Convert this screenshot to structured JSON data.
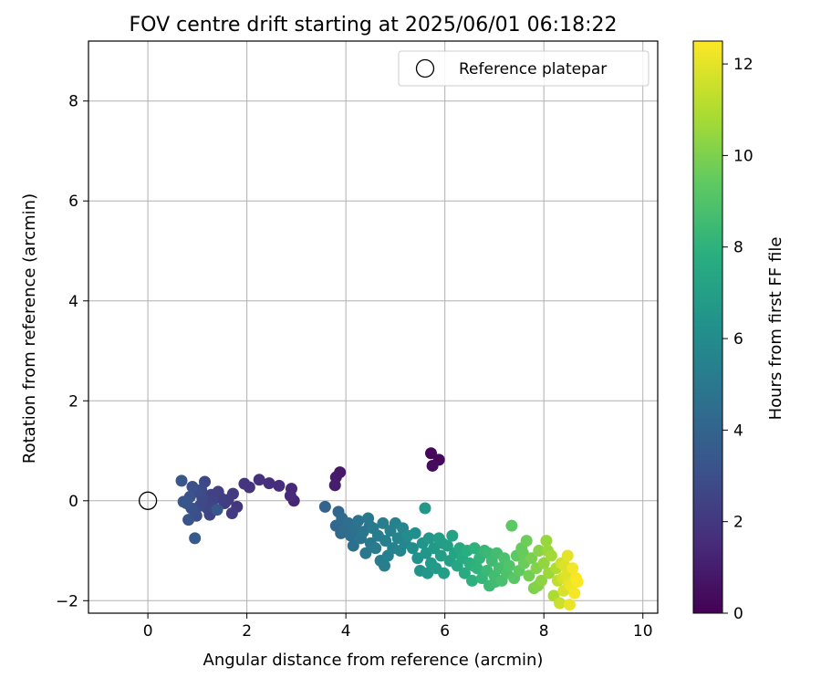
{
  "chart_data": {
    "type": "scatter",
    "title": "FOV centre drift starting at 2025/06/01 06:18:22",
    "xlabel": "Angular distance from reference (arcmin)",
    "ylabel": "Rotation from reference (arcmin)",
    "xlim": [
      -1.2,
      10.3
    ],
    "ylim": [
      -2.25,
      9.2
    ],
    "xticks": [
      0,
      2,
      4,
      6,
      8,
      10
    ],
    "yticks": [
      -2,
      0,
      2,
      4,
      6,
      8
    ],
    "grid": true,
    "legend": {
      "placement": "top-right",
      "entries": [
        "Reference platepar"
      ]
    },
    "reference_point": {
      "label": "Reference platepar",
      "x": 0,
      "y": 0,
      "marker": "open-circle"
    },
    "colorbar": {
      "label": "Hours from first FF file",
      "colormap": "viridis",
      "range": [
        0,
        12.5
      ],
      "ticks": [
        0,
        2,
        4,
        6,
        8,
        10,
        12
      ]
    },
    "points": [
      {
        "x": 5.72,
        "y": 0.95,
        "c": 0.2
      },
      {
        "x": 5.88,
        "y": 0.82,
        "c": 0.3
      },
      {
        "x": 5.75,
        "y": 0.7,
        "c": 0.4
      },
      {
        "x": 3.88,
        "y": 0.57,
        "c": 0.8
      },
      {
        "x": 3.8,
        "y": 0.47,
        "c": 0.9
      },
      {
        "x": 3.78,
        "y": 0.31,
        "c": 1.0
      },
      {
        "x": 2.95,
        "y": 0.0,
        "c": 1.3
      },
      {
        "x": 2.9,
        "y": 0.24,
        "c": 1.4
      },
      {
        "x": 2.88,
        "y": 0.1,
        "c": 1.45
      },
      {
        "x": 2.65,
        "y": 0.3,
        "c": 1.55
      },
      {
        "x": 2.45,
        "y": 0.35,
        "c": 1.65
      },
      {
        "x": 2.25,
        "y": 0.42,
        "c": 1.75
      },
      {
        "x": 2.05,
        "y": 0.27,
        "c": 1.85
      },
      {
        "x": 1.95,
        "y": 0.34,
        "c": 1.9
      },
      {
        "x": 1.8,
        "y": -0.12,
        "c": 2.0
      },
      {
        "x": 1.72,
        "y": 0.14,
        "c": 2.1
      },
      {
        "x": 1.7,
        "y": -0.25,
        "c": 2.15
      },
      {
        "x": 1.55,
        "y": -0.05,
        "c": 2.2
      },
      {
        "x": 1.48,
        "y": 0.05,
        "c": 2.3
      },
      {
        "x": 1.42,
        "y": 0.18,
        "c": 2.35
      },
      {
        "x": 1.35,
        "y": 0.1,
        "c": 2.4
      },
      {
        "x": 1.3,
        "y": -0.02,
        "c": 2.5
      },
      {
        "x": 1.25,
        "y": -0.28,
        "c": 2.55
      },
      {
        "x": 1.2,
        "y": -0.15,
        "c": 2.6
      },
      {
        "x": 1.15,
        "y": 0.38,
        "c": 2.7
      },
      {
        "x": 1.1,
        "y": 0.05,
        "c": 2.75
      },
      {
        "x": 1.05,
        "y": -0.1,
        "c": 2.8
      },
      {
        "x": 1.0,
        "y": 0.18,
        "c": 2.9
      },
      {
        "x": 0.98,
        "y": -0.3,
        "c": 2.95
      },
      {
        "x": 0.95,
        "y": -0.22,
        "c": 3.0
      },
      {
        "x": 0.9,
        "y": 0.28,
        "c": 3.05
      },
      {
        "x": 0.88,
        "y": -0.15,
        "c": 3.1
      },
      {
        "x": 0.85,
        "y": 0.08,
        "c": 3.15
      },
      {
        "x": 0.82,
        "y": -0.38,
        "c": 3.2
      },
      {
        "x": 0.78,
        "y": -0.05,
        "c": 3.25
      },
      {
        "x": 0.72,
        "y": -0.02,
        "c": 3.3
      },
      {
        "x": 0.68,
        "y": 0.4,
        "c": 3.35
      },
      {
        "x": 0.95,
        "y": -0.75,
        "c": 3.5
      },
      {
        "x": 1.4,
        "y": -0.18,
        "c": 3.4
      },
      {
        "x": 1.28,
        "y": 0.12,
        "c": 2.45
      },
      {
        "x": 1.62,
        "y": 0.02,
        "c": 2.25
      },
      {
        "x": 1.08,
        "y": 0.22,
        "c": 2.85
      },
      {
        "x": 3.58,
        "y": -0.12,
        "c": 4.0
      },
      {
        "x": 3.85,
        "y": -0.22,
        "c": 4.1
      },
      {
        "x": 3.8,
        "y": -0.5,
        "c": 4.2
      },
      {
        "x": 3.92,
        "y": -0.35,
        "c": 4.3
      },
      {
        "x": 3.95,
        "y": -0.6,
        "c": 4.4
      },
      {
        "x": 4.05,
        "y": -0.45,
        "c": 4.5
      },
      {
        "x": 4.1,
        "y": -0.7,
        "c": 4.55
      },
      {
        "x": 4.15,
        "y": -0.9,
        "c": 4.6
      },
      {
        "x": 4.2,
        "y": -0.55,
        "c": 4.7
      },
      {
        "x": 4.25,
        "y": -0.4,
        "c": 4.75
      },
      {
        "x": 4.3,
        "y": -0.75,
        "c": 4.8
      },
      {
        "x": 4.35,
        "y": -0.62,
        "c": 4.9
      },
      {
        "x": 4.4,
        "y": -1.05,
        "c": 4.95
      },
      {
        "x": 4.45,
        "y": -0.35,
        "c": 5.0
      },
      {
        "x": 4.5,
        "y": -0.85,
        "c": 5.05
      },
      {
        "x": 4.55,
        "y": -0.55,
        "c": 5.1
      },
      {
        "x": 4.6,
        "y": -0.95,
        "c": 5.15
      },
      {
        "x": 4.65,
        "y": -0.7,
        "c": 5.2
      },
      {
        "x": 4.7,
        "y": -1.2,
        "c": 5.25
      },
      {
        "x": 4.75,
        "y": -0.45,
        "c": 5.3
      },
      {
        "x": 4.8,
        "y": -0.8,
        "c": 5.35
      },
      {
        "x": 4.85,
        "y": -1.1,
        "c": 5.4
      },
      {
        "x": 4.9,
        "y": -0.6,
        "c": 5.45
      },
      {
        "x": 4.95,
        "y": -0.95,
        "c": 5.5
      },
      {
        "x": 5.0,
        "y": -0.45,
        "c": 5.55
      },
      {
        "x": 5.05,
        "y": -0.75,
        "c": 5.6
      },
      {
        "x": 5.1,
        "y": -1.0,
        "c": 5.65
      },
      {
        "x": 5.15,
        "y": -0.55,
        "c": 5.7
      },
      {
        "x": 5.2,
        "y": -0.85,
        "c": 5.75
      },
      {
        "x": 4.0,
        "y": -0.5,
        "c": 4.35
      },
      {
        "x": 4.48,
        "y": -0.5,
        "c": 4.85
      },
      {
        "x": 4.78,
        "y": -1.3,
        "c": 5.3
      },
      {
        "x": 3.9,
        "y": -0.65,
        "c": 4.25
      },
      {
        "x": 5.25,
        "y": -0.7,
        "c": 6.0
      },
      {
        "x": 5.35,
        "y": -0.95,
        "c": 6.1
      },
      {
        "x": 5.4,
        "y": -0.65,
        "c": 6.2
      },
      {
        "x": 5.45,
        "y": -1.15,
        "c": 6.3
      },
      {
        "x": 5.5,
        "y": -1.4,
        "c": 6.35
      },
      {
        "x": 5.55,
        "y": -0.85,
        "c": 6.4
      },
      {
        "x": 5.6,
        "y": -0.15,
        "c": 6.6
      },
      {
        "x": 5.62,
        "y": -1.05,
        "c": 6.5
      },
      {
        "x": 5.68,
        "y": -0.75,
        "c": 6.6
      },
      {
        "x": 5.72,
        "y": -1.25,
        "c": 6.7
      },
      {
        "x": 5.78,
        "y": -0.95,
        "c": 6.75
      },
      {
        "x": 5.82,
        "y": -1.35,
        "c": 6.8
      },
      {
        "x": 5.88,
        "y": -0.75,
        "c": 6.85
      },
      {
        "x": 5.92,
        "y": -1.1,
        "c": 6.9
      },
      {
        "x": 5.98,
        "y": -1.45,
        "c": 6.95
      },
      {
        "x": 6.05,
        "y": -0.9,
        "c": 7.0
      },
      {
        "x": 6.1,
        "y": -1.2,
        "c": 7.05
      },
      {
        "x": 6.15,
        "y": -0.7,
        "c": 7.1
      },
      {
        "x": 6.2,
        "y": -1.05,
        "c": 7.2
      },
      {
        "x": 5.95,
        "y": -0.85,
        "c": 6.9
      },
      {
        "x": 5.65,
        "y": -1.45,
        "c": 6.55
      },
      {
        "x": 6.25,
        "y": -1.3,
        "c": 7.4
      },
      {
        "x": 6.3,
        "y": -0.95,
        "c": 7.5
      },
      {
        "x": 6.35,
        "y": -1.15,
        "c": 7.6
      },
      {
        "x": 6.4,
        "y": -1.45,
        "c": 7.7
      },
      {
        "x": 6.45,
        "y": -1.0,
        "c": 7.8
      },
      {
        "x": 6.5,
        "y": -1.25,
        "c": 7.85
      },
      {
        "x": 6.55,
        "y": -1.6,
        "c": 7.9
      },
      {
        "x": 6.6,
        "y": -0.95,
        "c": 8.0
      },
      {
        "x": 6.65,
        "y": -1.35,
        "c": 8.05
      },
      {
        "x": 6.7,
        "y": -1.15,
        "c": 8.1
      },
      {
        "x": 6.75,
        "y": -1.55,
        "c": 8.2
      },
      {
        "x": 6.8,
        "y": -1.0,
        "c": 8.3
      },
      {
        "x": 6.85,
        "y": -1.4,
        "c": 8.35
      },
      {
        "x": 6.9,
        "y": -1.7,
        "c": 8.4
      },
      {
        "x": 6.95,
        "y": -1.2,
        "c": 8.5
      },
      {
        "x": 7.0,
        "y": -1.5,
        "c": 8.6
      },
      {
        "x": 7.05,
        "y": -1.05,
        "c": 8.65
      },
      {
        "x": 7.1,
        "y": -1.35,
        "c": 8.7
      },
      {
        "x": 7.15,
        "y": -1.6,
        "c": 8.8
      },
      {
        "x": 7.2,
        "y": -1.15,
        "c": 8.85
      },
      {
        "x": 7.25,
        "y": -1.45,
        "c": 8.9
      },
      {
        "x": 6.58,
        "y": -1.3,
        "c": 7.95
      },
      {
        "x": 6.88,
        "y": -1.05,
        "c": 8.35
      },
      {
        "x": 7.02,
        "y": -1.62,
        "c": 8.55
      },
      {
        "x": 7.3,
        "y": -1.3,
        "c": 9.0
      },
      {
        "x": 7.35,
        "y": -0.5,
        "c": 9.3
      },
      {
        "x": 7.4,
        "y": -1.55,
        "c": 9.2
      },
      {
        "x": 7.45,
        "y": -1.1,
        "c": 9.3
      },
      {
        "x": 7.5,
        "y": -1.4,
        "c": 9.4
      },
      {
        "x": 7.55,
        "y": -0.95,
        "c": 9.5
      },
      {
        "x": 7.6,
        "y": -1.25,
        "c": 9.6
      },
      {
        "x": 7.65,
        "y": -0.8,
        "c": 9.7
      },
      {
        "x": 7.7,
        "y": -1.5,
        "c": 9.8
      },
      {
        "x": 7.75,
        "y": -1.15,
        "c": 9.9
      },
      {
        "x": 7.8,
        "y": -1.75,
        "c": 10.0
      },
      {
        "x": 7.85,
        "y": -1.35,
        "c": 10.1
      },
      {
        "x": 7.9,
        "y": -1.0,
        "c": 10.2
      },
      {
        "x": 7.95,
        "y": -1.6,
        "c": 10.3
      },
      {
        "x": 8.0,
        "y": -1.25,
        "c": 10.4
      },
      {
        "x": 8.05,
        "y": -0.8,
        "c": 10.5
      },
      {
        "x": 8.1,
        "y": -1.45,
        "c": 10.6
      },
      {
        "x": 8.15,
        "y": -1.1,
        "c": 10.7
      },
      {
        "x": 8.2,
        "y": -1.9,
        "c": 10.9
      },
      {
        "x": 8.25,
        "y": -1.35,
        "c": 11.0
      },
      {
        "x": 7.58,
        "y": -1.05,
        "c": 9.55
      },
      {
        "x": 7.88,
        "y": -1.7,
        "c": 10.15
      },
      {
        "x": 8.08,
        "y": -1.0,
        "c": 10.55
      },
      {
        "x": 8.28,
        "y": -1.6,
        "c": 11.3
      },
      {
        "x": 8.32,
        "y": -2.05,
        "c": 11.5
      },
      {
        "x": 8.35,
        "y": -1.25,
        "c": 11.6
      },
      {
        "x": 8.4,
        "y": -1.8,
        "c": 11.8
      },
      {
        "x": 8.45,
        "y": -1.5,
        "c": 11.9
      },
      {
        "x": 8.48,
        "y": -1.1,
        "c": 12.0
      },
      {
        "x": 8.52,
        "y": -2.08,
        "c": 12.1
      },
      {
        "x": 8.55,
        "y": -1.7,
        "c": 12.2
      },
      {
        "x": 8.58,
        "y": -1.35,
        "c": 12.3
      },
      {
        "x": 8.62,
        "y": -1.85,
        "c": 12.35
      },
      {
        "x": 8.65,
        "y": -1.55,
        "c": 12.4
      },
      {
        "x": 8.68,
        "y": -1.62,
        "c": 12.45
      },
      {
        "x": 8.42,
        "y": -1.3,
        "c": 11.85
      },
      {
        "x": 8.5,
        "y": -1.65,
        "c": 12.05
      },
      {
        "x": 8.38,
        "y": -1.55,
        "c": 11.7
      }
    ]
  }
}
